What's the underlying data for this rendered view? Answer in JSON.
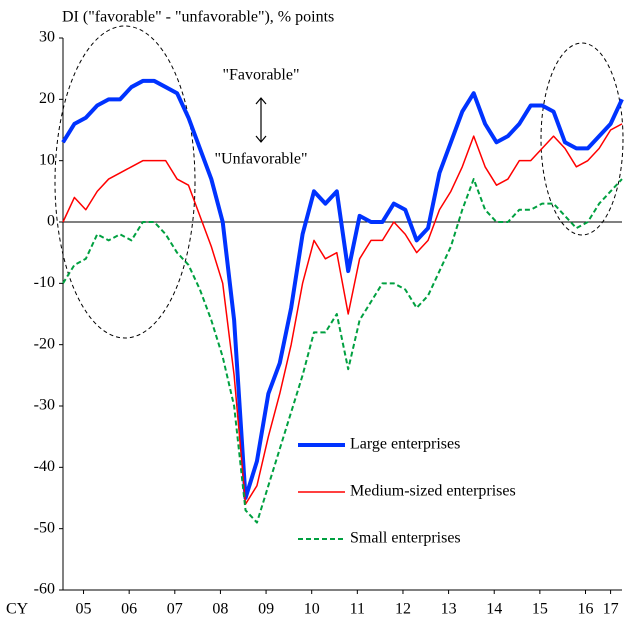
{
  "chart_data": {
    "type": "line",
    "title": "DI (\"favorable\" - \"unfavorable\"), % points",
    "x_axis_label": "CY",
    "annotations": [
      "\"Favorable\"",
      "\"Unfavorable\""
    ],
    "x": [
      2005,
      2005.25,
      2005.5,
      2005.75,
      2006,
      2006.25,
      2006.5,
      2006.75,
      2007,
      2007.25,
      2007.5,
      2007.75,
      2008,
      2008.25,
      2008.5,
      2008.75,
      2009,
      2009.25,
      2009.5,
      2009.75,
      2010,
      2010.25,
      2010.5,
      2010.75,
      2011,
      2011.25,
      2011.5,
      2011.75,
      2012,
      2012.25,
      2012.5,
      2012.75,
      2013,
      2013.25,
      2013.5,
      2013.75,
      2014,
      2014.25,
      2014.5,
      2014.75,
      2015,
      2015.25,
      2015.5,
      2015.75,
      2016,
      2016.25,
      2016.5,
      2016.75,
      2017,
      2017.25
    ],
    "series": [
      {
        "name": "Large enterprises",
        "color": "#0033ff",
        "values": [
          13,
          16,
          17,
          19,
          20,
          20,
          22,
          23,
          23,
          22,
          21,
          17,
          12,
          7,
          0,
          -16,
          -45,
          -39,
          -28,
          -23,
          -14,
          -2,
          5,
          3,
          5,
          -8,
          1,
          0,
          0,
          3,
          2,
          -3,
          -1,
          8,
          13,
          18,
          21,
          16,
          13,
          14,
          16,
          19,
          19,
          18,
          13,
          12,
          12,
          14,
          16,
          20
        ]
      },
      {
        "name": "Medium-sized enterprises",
        "color": "#ff0000",
        "values": [
          0,
          4,
          2,
          5,
          7,
          8,
          9,
          10,
          10,
          10,
          7,
          6,
          1,
          -4,
          -10,
          -25,
          -46,
          -43,
          -35,
          -28,
          -20,
          -10,
          -3,
          -6,
          -5,
          -15,
          -6,
          -3,
          -3,
          0,
          -2,
          -5,
          -3,
          2,
          5,
          9,
          14,
          9,
          6,
          7,
          10,
          10,
          12,
          14,
          12,
          9,
          10,
          12,
          15,
          16
        ]
      },
      {
        "name": "Small enterprises",
        "color": "#00a040",
        "values": [
          -10,
          -7,
          -6,
          -2,
          -3,
          -2,
          -3,
          0,
          0,
          -2,
          -5,
          -7,
          -11,
          -16,
          -22,
          -30,
          -47,
          -49,
          -43,
          -37,
          -31,
          -25,
          -18,
          -18,
          -15,
          -24,
          -16,
          -13,
          -10,
          -10,
          -11,
          -14,
          -12,
          -8,
          -4,
          2,
          7,
          2,
          0,
          0,
          2,
          2,
          3,
          3,
          1,
          -1,
          0,
          3,
          5,
          7
        ]
      }
    ],
    "xlim": [
      2005,
      2017.25
    ],
    "xticks": [
      {
        "value": 2005.45,
        "label": "05"
      },
      {
        "value": 2006.45,
        "label": "06"
      },
      {
        "value": 2007.45,
        "label": "07"
      },
      {
        "value": 2008.45,
        "label": "08"
      },
      {
        "value": 2009.45,
        "label": "09"
      },
      {
        "value": 2010.45,
        "label": "10"
      },
      {
        "value": 2011.45,
        "label": "11"
      },
      {
        "value": 2012.45,
        "label": "12"
      },
      {
        "value": 2013.45,
        "label": "13"
      },
      {
        "value": 2014.45,
        "label": "14"
      },
      {
        "value": 2015.45,
        "label": "15"
      },
      {
        "value": 2016.45,
        "label": "16"
      },
      {
        "value": 2017.0,
        "label": "17"
      }
    ],
    "ylim": [
      -60,
      30
    ],
    "yticks": [
      -60,
      -50,
      -40,
      -30,
      -20,
      -10,
      0,
      10,
      20,
      30
    ]
  }
}
